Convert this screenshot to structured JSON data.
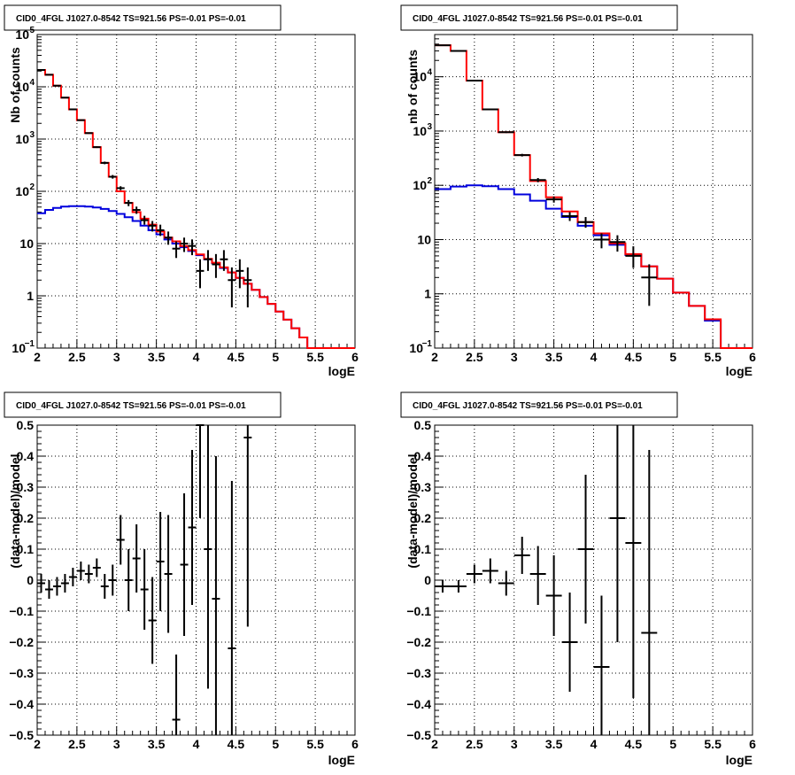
{
  "colors": {
    "data": "#000000",
    "total_model": "#ff0000",
    "source_model": "#0000dd",
    "grid": "#000000"
  },
  "chart_data": [
    {
      "type": "line",
      "title": "CID0_4FGL J1027.0-8542 TS=921.56 PS=-0.01 PS=-0.01",
      "xlabel": "logE",
      "ylabel": "Nb of counts",
      "xlim": [
        2,
        6
      ],
      "ylim": [
        0.1,
        100000
      ],
      "log_y": true,
      "grid": true,
      "x_ticks": [
        "2",
        "2.5",
        "3",
        "3.5",
        "4",
        "4.5",
        "5",
        "5.5",
        "6"
      ],
      "y_ticks": [
        {
          "base": "10",
          "exp": "−1"
        },
        {
          "base": "1",
          "exp": ""
        },
        {
          "base": "10",
          "exp": ""
        },
        {
          "base": "10",
          "exp": "2"
        },
        {
          "base": "10",
          "exp": "3"
        },
        {
          "base": "10",
          "exp": "4"
        },
        {
          "base": "10",
          "exp": "5"
        }
      ],
      "bin_edges": [
        2.0,
        2.1,
        2.2,
        2.3,
        2.4,
        2.5,
        2.6,
        2.7,
        2.8,
        2.9,
        3.0,
        3.1,
        3.2,
        3.3,
        3.4,
        3.5,
        3.6,
        3.7,
        3.8,
        3.9,
        4.0,
        4.1,
        4.2,
        4.3,
        4.4,
        4.5,
        4.6,
        4.7,
        4.8,
        4.9,
        5.0,
        5.1,
        5.2,
        5.3,
        5.4,
        5.5,
        5.6,
        5.7,
        5.8,
        5.9,
        6.0
      ],
      "series": [
        {
          "kind": "hist",
          "role": "source_model",
          "values": [
            38,
            44,
            48,
            51,
            52,
            52,
            51,
            49,
            46,
            42,
            37,
            32,
            27,
            22,
            18,
            15,
            12,
            10,
            8.5,
            7.2,
            6,
            5,
            4.2,
            3.4,
            2.8,
            2.2,
            1.7,
            1.3,
            0.95,
            0.7,
            0.5,
            0.35,
            0.24,
            0.16,
            0.1,
            0.1,
            0.1,
            0.1,
            0.1,
            0.1
          ]
        },
        {
          "kind": "hist",
          "role": "total_model",
          "values": [
            21000,
            17000,
            10500,
            6200,
            3700,
            2300,
            1300,
            700,
            350,
            190,
            100,
            60,
            40,
            30,
            23,
            17,
            13,
            11,
            9,
            7.5,
            6.2,
            5.1,
            4.3,
            3.5,
            2.8,
            2.2,
            1.7,
            1.3,
            0.95,
            0.7,
            0.5,
            0.35,
            0.24,
            0.16,
            0.1,
            0.1,
            0.1,
            0.1,
            0.1,
            0.1
          ]
        },
        {
          "kind": "points",
          "role": "data",
          "points": [
            {
              "x": 2.05,
              "y": 21000,
              "lo": 20800,
              "hi": 21200
            },
            {
              "x": 2.15,
              "y": 17000,
              "lo": 16800,
              "hi": 17200
            },
            {
              "x": 2.25,
              "y": 10500,
              "lo": 10300,
              "hi": 10700
            },
            {
              "x": 2.35,
              "y": 6200,
              "lo": 6050,
              "hi": 6350
            },
            {
              "x": 2.45,
              "y": 3700,
              "lo": 3600,
              "hi": 3800
            },
            {
              "x": 2.55,
              "y": 2300,
              "lo": 2250,
              "hi": 2350
            },
            {
              "x": 2.65,
              "y": 1300,
              "lo": 1260,
              "hi": 1340
            },
            {
              "x": 2.75,
              "y": 700,
              "lo": 675,
              "hi": 725
            },
            {
              "x": 2.85,
              "y": 350,
              "lo": 330,
              "hi": 370
            },
            {
              "x": 2.95,
              "y": 190,
              "lo": 175,
              "hi": 205
            },
            {
              "x": 3.05,
              "y": 115,
              "lo": 105,
              "hi": 125
            },
            {
              "x": 3.15,
              "y": 60,
              "lo": 52,
              "hi": 68
            },
            {
              "x": 3.25,
              "y": 44,
              "lo": 37,
              "hi": 51
            },
            {
              "x": 3.35,
              "y": 28,
              "lo": 23,
              "hi": 34
            },
            {
              "x": 3.45,
              "y": 22,
              "lo": 17,
              "hi": 27
            },
            {
              "x": 3.55,
              "y": 18,
              "lo": 14,
              "hi": 23
            },
            {
              "x": 3.65,
              "y": 13,
              "lo": 9.5,
              "hi": 17
            },
            {
              "x": 3.75,
              "y": 8,
              "lo": 5.3,
              "hi": 11
            },
            {
              "x": 3.85,
              "y": 10,
              "lo": 6.9,
              "hi": 13
            },
            {
              "x": 3.95,
              "y": 9,
              "lo": 6,
              "hi": 12
            },
            {
              "x": 4.05,
              "y": 3,
              "lo": 1.4,
              "hi": 5
            },
            {
              "x": 4.15,
              "y": 5,
              "lo": 3,
              "hi": 7.5
            },
            {
              "x": 4.25,
              "y": 4,
              "lo": 2.2,
              "hi": 6.3
            },
            {
              "x": 4.35,
              "y": 5,
              "lo": 3,
              "hi": 7.5
            },
            {
              "x": 4.45,
              "y": 2,
              "lo": 0.6,
              "hi": 3.5
            },
            {
              "x": 4.55,
              "y": 3,
              "lo": 1.4,
              "hi": 5
            },
            {
              "x": 4.65,
              "y": 2,
              "lo": 0.6,
              "hi": 3.5
            }
          ]
        }
      ]
    },
    {
      "type": "line",
      "title": "CID0_4FGL J1027.0-8542 TS=921.56 PS=-0.01 PS=-0.01",
      "xlabel": "logE",
      "ylabel": "nb of counts",
      "xlim": [
        2,
        6
      ],
      "ylim": [
        0.1,
        60000
      ],
      "log_y": true,
      "grid": true,
      "x_ticks": [
        "2",
        "2.5",
        "3",
        "3.5",
        "4",
        "4.5",
        "5",
        "5.5",
        "6"
      ],
      "y_ticks": [
        {
          "base": "10",
          "exp": "−1"
        },
        {
          "base": "1",
          "exp": ""
        },
        {
          "base": "10",
          "exp": ""
        },
        {
          "base": "10",
          "exp": "2"
        },
        {
          "base": "10",
          "exp": "3"
        },
        {
          "base": "10",
          "exp": "4"
        }
      ],
      "bin_edges": [
        2.0,
        2.2,
        2.4,
        2.6,
        2.8,
        3.0,
        3.2,
        3.4,
        3.6,
        3.8,
        4.0,
        4.2,
        4.4,
        4.6,
        4.8,
        5.0,
        5.2,
        5.4,
        5.6,
        5.8,
        6.0
      ],
      "series": [
        {
          "kind": "hist",
          "role": "source_model",
          "values": [
            85,
            95,
            100,
            96,
            85,
            68,
            52,
            37,
            26,
            18,
            12,
            8,
            5.2,
            3.2,
            1.9,
            1.05,
            0.6,
            0.32,
            0.1,
            0.1
          ]
        },
        {
          "kind": "hist",
          "role": "total_model",
          "values": [
            38000,
            30000,
            8500,
            2500,
            950,
            360,
            120,
            60,
            33,
            21,
            13,
            8.5,
            5.4,
            3.2,
            1.9,
            1.05,
            0.6,
            0.34,
            0.1,
            0.1
          ]
        },
        {
          "kind": "points",
          "role": "data",
          "points": [
            {
              "x": 2.1,
              "y": 38000,
              "lo": 37800,
              "hi": 38200
            },
            {
              "x": 2.3,
              "y": 30000,
              "lo": 29800,
              "hi": 30200
            },
            {
              "x": 2.5,
              "y": 8500,
              "lo": 8400,
              "hi": 8600
            },
            {
              "x": 2.7,
              "y": 2500,
              "lo": 2450,
              "hi": 2550
            },
            {
              "x": 2.9,
              "y": 950,
              "lo": 920,
              "hi": 980
            },
            {
              "x": 3.1,
              "y": 360,
              "lo": 340,
              "hi": 380
            },
            {
              "x": 3.3,
              "y": 125,
              "lo": 114,
              "hi": 136
            },
            {
              "x": 3.5,
              "y": 55,
              "lo": 48,
              "hi": 62
            },
            {
              "x": 3.7,
              "y": 27,
              "lo": 22,
              "hi": 32
            },
            {
              "x": 3.9,
              "y": 21,
              "lo": 16.5,
              "hi": 26
            },
            {
              "x": 4.1,
              "y": 10,
              "lo": 6.9,
              "hi": 13
            },
            {
              "x": 4.3,
              "y": 9,
              "lo": 6,
              "hi": 12
            },
            {
              "x": 4.5,
              "y": 5,
              "lo": 3,
              "hi": 7.5
            },
            {
              "x": 4.7,
              "y": 2,
              "lo": 0.6,
              "hi": 3.5
            }
          ]
        }
      ]
    },
    {
      "type": "scatter",
      "title": "CID0_4FGL J1027.0-8542 TS=921.56 PS=-0.01 PS=-0.01",
      "xlabel": "logE",
      "ylabel": "(data-model)/model",
      "xlim": [
        2,
        6
      ],
      "ylim": [
        -0.5,
        0.5
      ],
      "log_y": false,
      "grid": true,
      "x_ticks": [
        "2",
        "2.5",
        "3",
        "3.5",
        "4",
        "4.5",
        "5",
        "5.5",
        "6"
      ],
      "y_ticks": [
        "−0.5",
        "−0.4",
        "−0.3",
        "−0.2",
        "−0.1",
        "0",
        "0.1",
        "0.2",
        "0.3",
        "0.4",
        "0.5"
      ],
      "x_halfwidth": 0.05,
      "points": [
        {
          "x": 2.05,
          "y": -0.01,
          "lo": -0.04,
          "hi": 0.02
        },
        {
          "x": 2.15,
          "y": -0.03,
          "lo": -0.06,
          "hi": 0.0
        },
        {
          "x": 2.25,
          "y": -0.02,
          "lo": -0.05,
          "hi": 0.01
        },
        {
          "x": 2.35,
          "y": -0.01,
          "lo": -0.04,
          "hi": 0.02
        },
        {
          "x": 2.45,
          "y": 0.01,
          "lo": -0.02,
          "hi": 0.04
        },
        {
          "x": 2.55,
          "y": 0.03,
          "lo": 0.0,
          "hi": 0.06
        },
        {
          "x": 2.65,
          "y": 0.02,
          "lo": -0.01,
          "hi": 0.05
        },
        {
          "x": 2.75,
          "y": 0.04,
          "lo": 0.01,
          "hi": 0.07
        },
        {
          "x": 2.85,
          "y": -0.02,
          "lo": -0.06,
          "hi": 0.02
        },
        {
          "x": 2.95,
          "y": 0.0,
          "lo": -0.05,
          "hi": 0.05
        },
        {
          "x": 3.05,
          "y": 0.13,
          "lo": 0.05,
          "hi": 0.21
        },
        {
          "x": 3.15,
          "y": 0.0,
          "lo": -0.1,
          "hi": 0.1
        },
        {
          "x": 3.25,
          "y": 0.07,
          "lo": -0.04,
          "hi": 0.18
        },
        {
          "x": 3.35,
          "y": -0.03,
          "lo": -0.16,
          "hi": 0.1
        },
        {
          "x": 3.45,
          "y": -0.13,
          "lo": -0.27,
          "hi": 0.01
        },
        {
          "x": 3.55,
          "y": 0.06,
          "lo": -0.1,
          "hi": 0.22
        },
        {
          "x": 3.65,
          "y": 0.02,
          "lo": -0.17,
          "hi": 0.21
        },
        {
          "x": 3.75,
          "y": -0.45,
          "lo": -0.66,
          "hi": -0.24
        },
        {
          "x": 3.85,
          "y": 0.05,
          "lo": -0.18,
          "hi": 0.28
        },
        {
          "x": 3.95,
          "y": 0.17,
          "lo": -0.08,
          "hi": 0.42
        },
        {
          "x": 4.05,
          "y": 0.5,
          "lo": 0.2,
          "hi": 0.8
        },
        {
          "x": 4.15,
          "y": 0.1,
          "lo": -0.35,
          "hi": 0.55
        },
        {
          "x": 4.25,
          "y": -0.06,
          "lo": -0.52,
          "hi": 0.4
        },
        {
          "x": 4.45,
          "y": -0.22,
          "lo": -0.77,
          "hi": 0.32
        },
        {
          "x": 4.65,
          "y": 0.46,
          "lo": -0.15,
          "hi": 1.07
        }
      ]
    },
    {
      "type": "scatter",
      "title": "CID0_4FGL J1027.0-8542 TS=921.56 PS=-0.01 PS=-0.01",
      "xlabel": "logE",
      "ylabel": "(data-model)/model",
      "xlim": [
        2,
        6
      ],
      "ylim": [
        -0.5,
        0.5
      ],
      "log_y": false,
      "grid": true,
      "x_ticks": [
        "2",
        "2.5",
        "3",
        "3.5",
        "4",
        "4.5",
        "5",
        "5.5",
        "6"
      ],
      "y_ticks": [
        "−0.5",
        "−0.4",
        "−0.3",
        "−0.2",
        "−0.1",
        "0",
        "0.1",
        "0.2",
        "0.3",
        "0.4",
        "0.5"
      ],
      "x_halfwidth": 0.1,
      "points": [
        {
          "x": 2.1,
          "y": -0.02,
          "lo": -0.04,
          "hi": 0.0
        },
        {
          "x": 2.3,
          "y": -0.02,
          "lo": -0.04,
          "hi": 0.0
        },
        {
          "x": 2.5,
          "y": 0.02,
          "lo": -0.01,
          "hi": 0.05
        },
        {
          "x": 2.7,
          "y": 0.03,
          "lo": -0.01,
          "hi": 0.07
        },
        {
          "x": 2.9,
          "y": -0.01,
          "lo": -0.05,
          "hi": 0.03
        },
        {
          "x": 3.1,
          "y": 0.08,
          "lo": 0.02,
          "hi": 0.14
        },
        {
          "x": 3.3,
          "y": 0.02,
          "lo": -0.08,
          "hi": 0.11
        },
        {
          "x": 3.5,
          "y": -0.05,
          "lo": -0.18,
          "hi": 0.08
        },
        {
          "x": 3.7,
          "y": -0.2,
          "lo": -0.36,
          "hi": -0.04
        },
        {
          "x": 3.9,
          "y": 0.1,
          "lo": -0.14,
          "hi": 0.34
        },
        {
          "x": 4.1,
          "y": -0.28,
          "lo": -0.52,
          "hi": -0.05
        },
        {
          "x": 4.3,
          "y": 0.2,
          "lo": -0.2,
          "hi": 0.6
        },
        {
          "x": 4.5,
          "y": 0.12,
          "lo": -0.38,
          "hi": 0.62
        },
        {
          "x": 4.7,
          "y": -0.17,
          "lo": -0.75,
          "hi": 0.42
        }
      ]
    }
  ]
}
